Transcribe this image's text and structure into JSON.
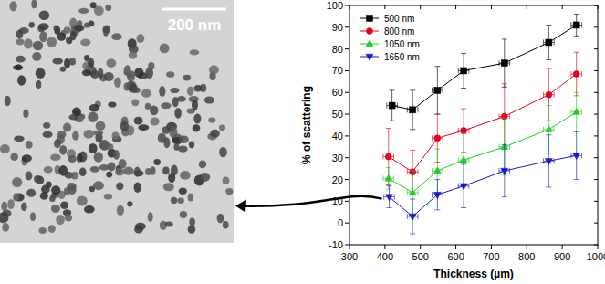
{
  "micrograph": {
    "scale_bar": "200 nm"
  },
  "chart_data": {
    "type": "line",
    "x_label": "Thickness (µm)",
    "y_label": "% of scattering",
    "xlim": [
      300,
      1000
    ],
    "xticks": [
      300,
      400,
      500,
      600,
      700,
      800,
      900,
      1000
    ],
    "ylim": [
      -10,
      100
    ],
    "yticks": [
      -10,
      0,
      10,
      20,
      30,
      40,
      50,
      60,
      70,
      80,
      90,
      100
    ],
    "legend": "top-left",
    "series": [
      {
        "name": "500 nm",
        "color": "#000000",
        "marker": "square",
        "x": [
          420,
          478,
          548,
          622,
          737,
          862,
          940
        ],
        "values": [
          54,
          52,
          61,
          70,
          73.5,
          83,
          91
        ],
        "errors": [
          7,
          9,
          11,
          8,
          11,
          8,
          5
        ],
        "x_errors": [
          15,
          15,
          15,
          15,
          15,
          15,
          15
        ]
      },
      {
        "name": "800 nm",
        "color": "#e3001b",
        "marker": "circle",
        "x": [
          410,
          478,
          548,
          622,
          737,
          862,
          940
        ],
        "values": [
          30.5,
          23.5,
          39,
          42.5,
          49,
          59,
          68.5
        ],
        "errors": [
          13,
          10,
          11,
          10,
          15,
          12,
          10
        ],
        "x_errors": [
          15,
          15,
          15,
          15,
          15,
          15,
          15
        ]
      },
      {
        "name": "1050 nm",
        "color": "#22cc22",
        "marker": "triangle-up",
        "x": [
          410,
          478,
          548,
          622,
          737,
          862,
          940
        ],
        "values": [
          20.5,
          14,
          24,
          29,
          35,
          43,
          51
        ],
        "errors": [
          5,
          10,
          10,
          12,
          13,
          11,
          9
        ],
        "x_errors": [
          15,
          15,
          15,
          15,
          15,
          15,
          15
        ]
      },
      {
        "name": "1650 nm",
        "color": "#1a1acd",
        "marker": "triangle-down",
        "x": [
          412,
          478,
          548,
          622,
          737,
          862,
          940
        ],
        "values": [
          12,
          3,
          13,
          17,
          24,
          28.5,
          31
        ],
        "errors": [
          5,
          8,
          7,
          10,
          12,
          12,
          11
        ],
        "x_errors": [
          15,
          15,
          15,
          15,
          15,
          15,
          15
        ]
      }
    ]
  }
}
